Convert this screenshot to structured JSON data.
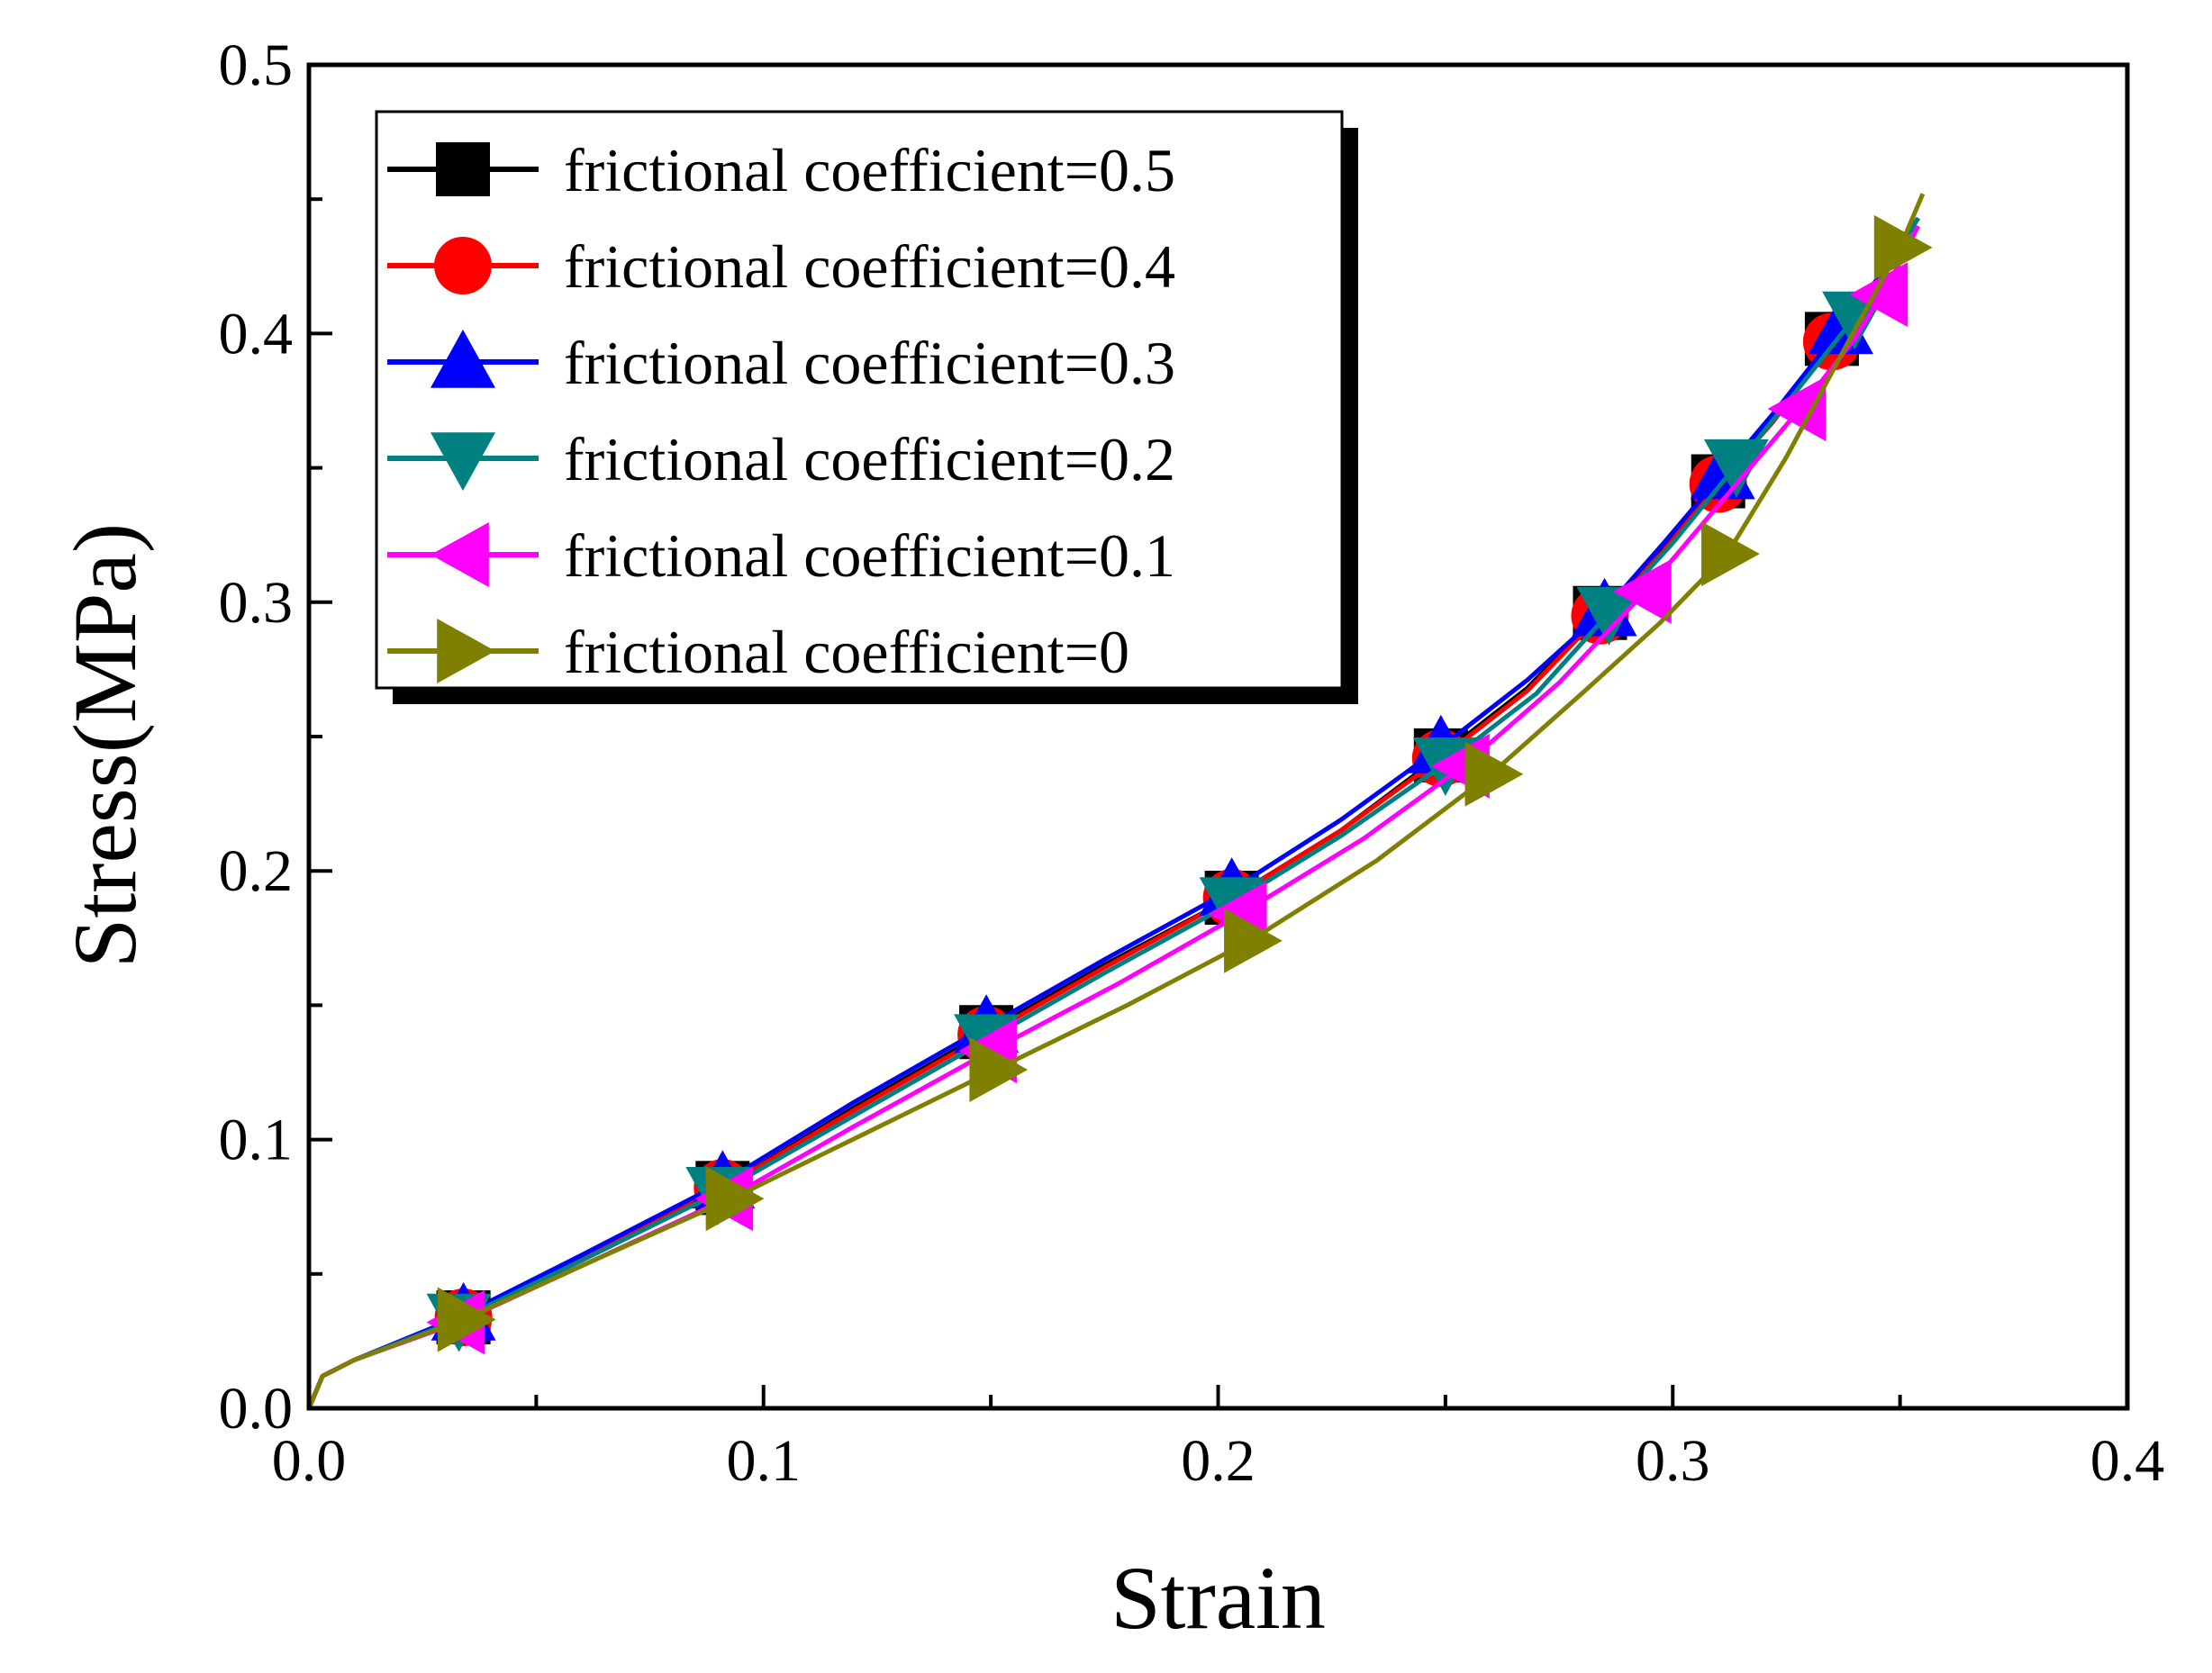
{
  "chart_data": {
    "type": "line",
    "title": "",
    "xlabel": "Strain",
    "ylabel": "Stress(MPa)",
    "xlim": [
      0.0,
      0.4
    ],
    "ylim": [
      0.0,
      0.5
    ],
    "x_ticks": [
      "0.0",
      "0.1",
      "0.2",
      "0.3",
      "0.4"
    ],
    "y_ticks": [
      "0.0",
      "0.1",
      "0.2",
      "0.3",
      "0.4",
      "0.5"
    ],
    "x_tick_values": [
      0.0,
      0.1,
      0.2,
      0.3,
      0.4
    ],
    "y_tick_values": [
      0.0,
      0.1,
      0.2,
      0.3,
      0.4,
      0.5
    ],
    "grid": false,
    "legend_position": "top-left",
    "series": [
      {
        "name": "frictional coefficient=0.5",
        "color": "#000000",
        "marker": "square",
        "x": [
          0.0,
          0.003,
          0.01,
          0.033,
          0.06,
          0.091,
          0.12,
          0.149,
          0.175,
          0.203,
          0.227,
          0.249,
          0.268,
          0.284,
          0.298,
          0.31,
          0.322,
          0.335,
          0.345,
          0.353
        ],
        "y": [
          0.0,
          0.012,
          0.018,
          0.033,
          0.056,
          0.082,
          0.112,
          0.14,
          0.165,
          0.19,
          0.215,
          0.243,
          0.268,
          0.296,
          0.32,
          0.345,
          0.368,
          0.398,
          0.42,
          0.44
        ]
      },
      {
        "name": "frictional coefficient=0.4",
        "color": "#ff0000",
        "marker": "circle",
        "x": [
          0.0,
          0.003,
          0.01,
          0.033,
          0.06,
          0.091,
          0.12,
          0.149,
          0.175,
          0.203,
          0.227,
          0.249,
          0.268,
          0.284,
          0.298,
          0.31,
          0.322,
          0.335,
          0.345,
          0.353
        ],
        "y": [
          0.0,
          0.012,
          0.018,
          0.033,
          0.056,
          0.082,
          0.111,
          0.139,
          0.164,
          0.19,
          0.215,
          0.242,
          0.267,
          0.295,
          0.319,
          0.344,
          0.367,
          0.397,
          0.419,
          0.44
        ]
      },
      {
        "name": "frictional coefficient=0.3",
        "color": "#0000ff",
        "marker": "triangle-up",
        "x": [
          0.0,
          0.003,
          0.01,
          0.033,
          0.06,
          0.091,
          0.12,
          0.149,
          0.175,
          0.203,
          0.227,
          0.249,
          0.268,
          0.285,
          0.298,
          0.311,
          0.323,
          0.337,
          0.347,
          0.354
        ],
        "y": [
          0.0,
          0.012,
          0.018,
          0.034,
          0.057,
          0.084,
          0.114,
          0.142,
          0.167,
          0.193,
          0.219,
          0.246,
          0.271,
          0.297,
          0.322,
          0.348,
          0.372,
          0.402,
          0.425,
          0.443
        ]
      },
      {
        "name": "frictional coefficient=0.2",
        "color": "#008080",
        "marker": "triangle-down",
        "x": [
          0.0,
          0.003,
          0.01,
          0.033,
          0.06,
          0.091,
          0.12,
          0.149,
          0.175,
          0.203,
          0.227,
          0.25,
          0.27,
          0.286,
          0.3,
          0.314,
          0.326,
          0.34,
          0.348,
          0.354
        ],
        "y": [
          0.0,
          0.012,
          0.018,
          0.033,
          0.055,
          0.081,
          0.109,
          0.137,
          0.162,
          0.188,
          0.213,
          0.24,
          0.266,
          0.296,
          0.322,
          0.351,
          0.376,
          0.406,
          0.426,
          0.443
        ]
      },
      {
        "name": "frictional coefficient=0.1",
        "color": "#ff00ff",
        "marker": "triangle-left",
        "x": [
          0.0,
          0.003,
          0.01,
          0.033,
          0.06,
          0.092,
          0.12,
          0.15,
          0.178,
          0.205,
          0.232,
          0.254,
          0.275,
          0.294,
          0.31,
          0.328,
          0.34,
          0.348,
          0.354
        ],
        "y": [
          0.0,
          0.012,
          0.018,
          0.032,
          0.053,
          0.078,
          0.105,
          0.133,
          0.158,
          0.184,
          0.212,
          0.239,
          0.27,
          0.304,
          0.336,
          0.372,
          0.398,
          0.42,
          0.44
        ]
      },
      {
        "name": "frictional coefficient=0",
        "color": "#808000",
        "marker": "triangle-right",
        "x": [
          0.0,
          0.003,
          0.01,
          0.034,
          0.06,
          0.093,
          0.122,
          0.151,
          0.18,
          0.207,
          0.235,
          0.26,
          0.28,
          0.297,
          0.312,
          0.325,
          0.338,
          0.35,
          0.355
        ],
        "y": [
          0.0,
          0.012,
          0.018,
          0.033,
          0.053,
          0.078,
          0.102,
          0.126,
          0.15,
          0.174,
          0.204,
          0.236,
          0.266,
          0.292,
          0.318,
          0.354,
          0.395,
          0.432,
          0.452
        ]
      }
    ],
    "marker_points": [
      {
        "series": 0,
        "x": [
          0.034,
          0.091,
          0.149,
          0.203,
          0.249,
          0.284,
          0.31,
          0.335
        ]
      },
      {
        "series": 1,
        "x": [
          0.034,
          0.091,
          0.149,
          0.203,
          0.249,
          0.284,
          0.31,
          0.335
        ]
      },
      {
        "series": 2,
        "x": [
          0.034,
          0.091,
          0.149,
          0.203,
          0.249,
          0.285,
          0.311,
          0.337
        ]
      },
      {
        "series": 3,
        "x": [
          0.033,
          0.09,
          0.149,
          0.203,
          0.25,
          0.286,
          0.314,
          0.34
        ]
      },
      {
        "series": 4,
        "x": [
          0.033,
          0.092,
          0.15,
          0.205,
          0.254,
          0.294,
          0.328,
          0.346
        ]
      },
      {
        "series": 5,
        "x": [
          0.034,
          0.093,
          0.151,
          0.207,
          0.26,
          0.312,
          0.35
        ]
      }
    ]
  }
}
